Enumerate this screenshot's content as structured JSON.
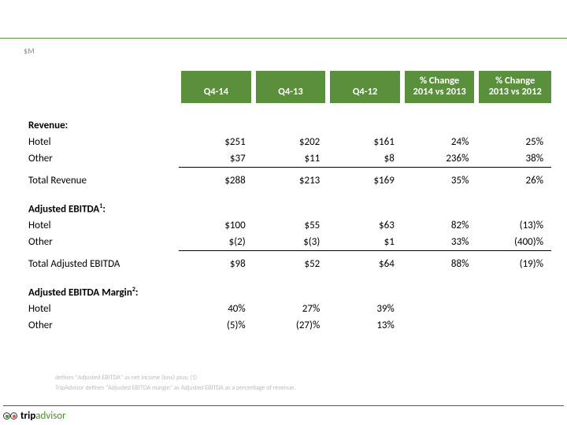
{
  "unit": "$M",
  "colors": {
    "header_bg": "#5a8f3c",
    "header_text": "#ffffff",
    "rule": "#5a8f3c",
    "footnote_text": "#bcbcbc"
  },
  "columns": [
    {
      "line1": "",
      "line2": "Q4-14"
    },
    {
      "line1": "",
      "line2": "Q4-13"
    },
    {
      "line1": "",
      "line2": "Q4-12"
    },
    {
      "line1": "% Change",
      "line2": "2014 vs 2013"
    },
    {
      "line1": "% Change",
      "line2": "2013 vs 2012"
    }
  ],
  "sections": [
    {
      "title": "Revenue:",
      "rows": [
        {
          "label": "Hotel",
          "cells": [
            "$251",
            "$202",
            "$161",
            "24%",
            "25%"
          ]
        },
        {
          "label": "Other",
          "cells": [
            "$37",
            "$11",
            "$8",
            "236%",
            "38%"
          ]
        }
      ],
      "total": {
        "label": "Total Revenue",
        "cells": [
          "$288",
          "$213",
          "$169",
          "35%",
          "26%"
        ]
      }
    },
    {
      "title": "Adjusted EBITDA",
      "sup": "1",
      "title_suffix": ":",
      "rows": [
        {
          "label": "Hotel",
          "cells": [
            "$100",
            "$55",
            "$63",
            "82%",
            "(13)%"
          ]
        },
        {
          "label": "Other",
          "cells": [
            "$(2)",
            "$(3)",
            "$1",
            "33%",
            "(400)%"
          ]
        }
      ],
      "total": {
        "label": "Total Adjusted EBITDA",
        "cells": [
          "$98",
          "$52",
          "$64",
          "88%",
          "(19)%"
        ]
      }
    },
    {
      "title": "Adjusted EBITDA Margin",
      "sup": "2",
      "title_suffix": ":",
      "rows": [
        {
          "label": "Hotel",
          "cells": [
            "40%",
            "27%",
            "39%",
            "",
            ""
          ]
        },
        {
          "label": "Other",
          "cells": [
            "(5)%",
            "(27)%",
            "13%",
            "",
            ""
          ]
        }
      ]
    }
  ],
  "footnotes": [
    "defines \"Adjusted EBITDA\" as net income (loss) plus: (1)",
    "TripAdvisor defines \"Adjusted EBITDA margin\" as Adjusted EBITDA as a percentage of revenue."
  ],
  "logo": {
    "part1": "trip",
    "part2": "advisor"
  }
}
